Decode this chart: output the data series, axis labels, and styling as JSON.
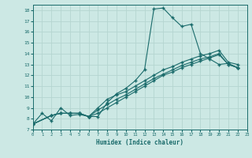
{
  "xlabel": "Humidex (Indice chaleur)",
  "bg_color": "#cce8e4",
  "line_color": "#1a6b6b",
  "grid_color": "#b5d5d0",
  "xlim": [
    0,
    23
  ],
  "ylim": [
    7,
    18.5
  ],
  "xticks": [
    0,
    1,
    2,
    3,
    4,
    5,
    6,
    7,
    8,
    9,
    10,
    11,
    12,
    13,
    14,
    15,
    16,
    17,
    18,
    19,
    20,
    21,
    22,
    23
  ],
  "yticks": [
    7,
    8,
    9,
    10,
    11,
    12,
    13,
    14,
    15,
    16,
    17,
    18
  ],
  "series": [
    {
      "x": [
        0,
        1,
        2,
        3,
        4,
        5,
        6,
        7,
        8,
        9,
        10,
        11,
        12,
        13,
        14,
        15,
        16,
        17,
        18,
        19,
        20,
        21,
        22
      ],
      "y": [
        7.5,
        8.5,
        7.8,
        9.0,
        8.3,
        8.4,
        8.2,
        8.2,
        9.5,
        10.3,
        10.8,
        11.5,
        12.5,
        18.1,
        18.2,
        17.3,
        16.5,
        16.7,
        14.0,
        13.5,
        13.0,
        13.1,
        12.7
      ]
    },
    {
      "x": [
        0,
        2,
        3,
        4,
        5,
        6,
        7,
        8,
        9,
        10,
        11,
        12,
        13,
        14,
        15,
        16,
        17,
        18,
        19,
        20,
        21,
        22
      ],
      "y": [
        7.5,
        8.3,
        8.5,
        8.5,
        8.5,
        8.2,
        9.0,
        9.8,
        10.2,
        10.5,
        11.0,
        11.5,
        12.0,
        12.5,
        12.8,
        13.2,
        13.5,
        13.8,
        14.0,
        14.3,
        13.2,
        13.0
      ]
    },
    {
      "x": [
        0,
        2,
        3,
        4,
        5,
        6,
        7,
        8,
        9,
        10,
        11,
        12,
        13,
        14,
        15,
        16,
        17,
        18,
        19,
        20,
        21,
        22
      ],
      "y": [
        7.5,
        8.3,
        8.5,
        8.5,
        8.5,
        8.2,
        8.8,
        9.3,
        9.8,
        10.2,
        10.7,
        11.2,
        11.7,
        12.1,
        12.5,
        12.9,
        13.2,
        13.5,
        13.7,
        14.0,
        13.0,
        12.7
      ]
    },
    {
      "x": [
        0,
        2,
        3,
        4,
        5,
        6,
        7,
        8,
        9,
        10,
        11,
        12,
        13,
        14,
        15,
        16,
        17,
        18,
        19,
        20,
        21,
        22
      ],
      "y": [
        7.5,
        8.3,
        8.5,
        8.5,
        8.5,
        8.2,
        8.5,
        9.0,
        9.5,
        10.0,
        10.5,
        11.0,
        11.5,
        12.0,
        12.3,
        12.7,
        13.0,
        13.3,
        13.6,
        13.9,
        13.0,
        12.7
      ]
    }
  ]
}
